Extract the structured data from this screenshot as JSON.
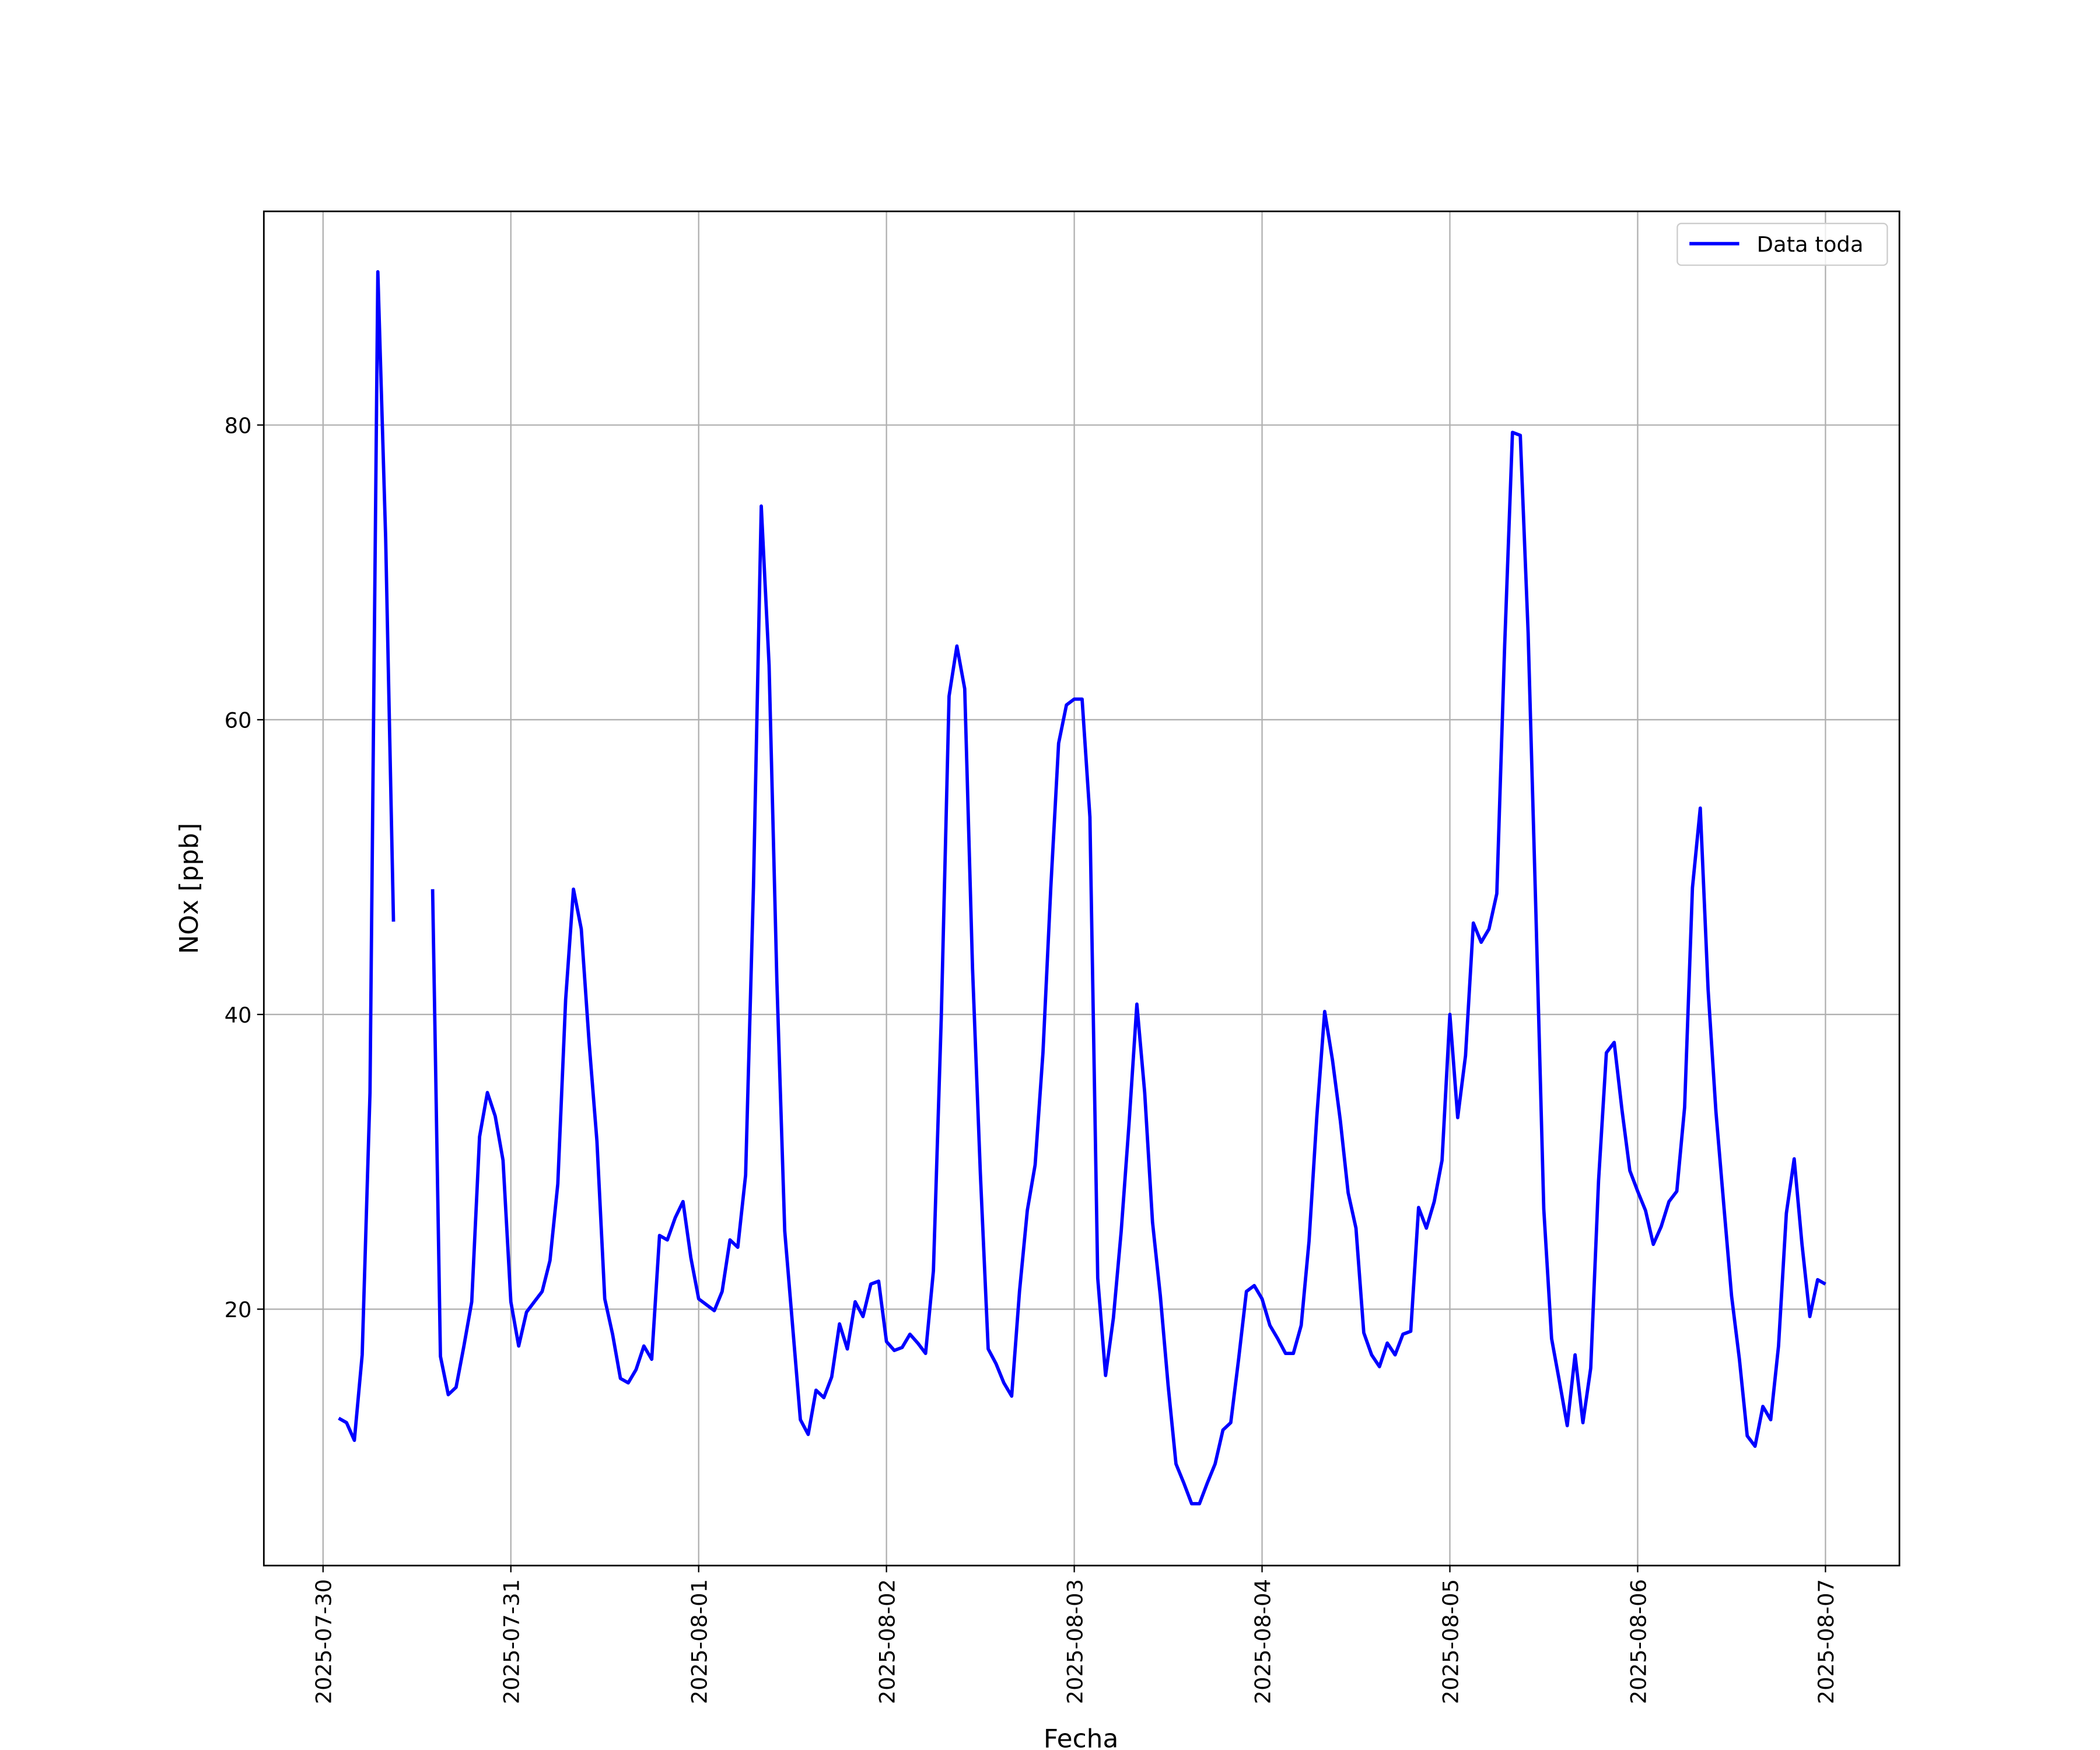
{
  "chart_data": {
    "type": "line",
    "xlabel": "Fecha",
    "ylabel": "NOx [ppb]",
    "x": [
      "2025-07-30 02:00",
      "2025-07-30 03:00",
      "2025-07-30 04:00",
      "2025-07-30 05:00",
      "2025-07-30 06:00",
      "2025-07-30 07:00",
      "2025-07-30 08:00",
      "2025-07-30 09:00",
      "2025-07-30 10:00",
      "2025-07-30 11:00",
      "2025-07-30 12:00",
      "2025-07-30 13:00",
      "2025-07-30 14:00",
      "2025-07-30 15:00",
      "2025-07-30 16:00",
      "2025-07-30 17:00",
      "2025-07-30 18:00",
      "2025-07-30 19:00",
      "2025-07-30 20:00",
      "2025-07-30 21:00",
      "2025-07-30 22:00",
      "2025-07-30 23:00",
      "2025-07-31 00:00",
      "2025-07-31 01:00",
      "2025-07-31 02:00",
      "2025-07-31 03:00",
      "2025-07-31 04:00",
      "2025-07-31 05:00",
      "2025-07-31 06:00",
      "2025-07-31 07:00",
      "2025-07-31 08:00",
      "2025-07-31 09:00",
      "2025-07-31 10:00",
      "2025-07-31 11:00",
      "2025-07-31 12:00",
      "2025-07-31 13:00",
      "2025-07-31 14:00",
      "2025-07-31 15:00",
      "2025-07-31 16:00",
      "2025-07-31 17:00",
      "2025-07-31 18:00",
      "2025-07-31 19:00",
      "2025-07-31 20:00",
      "2025-07-31 21:00",
      "2025-07-31 22:00",
      "2025-07-31 23:00",
      "2025-08-01 00:00",
      "2025-08-01 01:00",
      "2025-08-01 02:00",
      "2025-08-01 03:00",
      "2025-08-01 04:00",
      "2025-08-01 05:00",
      "2025-08-01 06:00",
      "2025-08-01 07:00",
      "2025-08-01 08:00",
      "2025-08-01 09:00",
      "2025-08-01 10:00",
      "2025-08-01 11:00",
      "2025-08-01 12:00",
      "2025-08-01 13:00",
      "2025-08-01 14:00",
      "2025-08-01 15:00",
      "2025-08-01 16:00",
      "2025-08-01 17:00",
      "2025-08-01 18:00",
      "2025-08-01 19:00",
      "2025-08-01 20:00",
      "2025-08-01 21:00",
      "2025-08-01 22:00",
      "2025-08-01 23:00",
      "2025-08-02 00:00",
      "2025-08-02 01:00",
      "2025-08-02 02:00",
      "2025-08-02 03:00",
      "2025-08-02 04:00",
      "2025-08-02 05:00",
      "2025-08-02 06:00",
      "2025-08-02 07:00",
      "2025-08-02 08:00",
      "2025-08-02 09:00",
      "2025-08-02 10:00",
      "2025-08-02 11:00",
      "2025-08-02 12:00",
      "2025-08-02 13:00",
      "2025-08-02 14:00",
      "2025-08-02 15:00",
      "2025-08-02 16:00",
      "2025-08-02 17:00",
      "2025-08-02 18:00",
      "2025-08-02 19:00",
      "2025-08-02 20:00",
      "2025-08-02 21:00",
      "2025-08-02 22:00",
      "2025-08-02 23:00",
      "2025-08-03 00:00",
      "2025-08-03 01:00",
      "2025-08-03 02:00",
      "2025-08-03 03:00",
      "2025-08-03 04:00",
      "2025-08-03 05:00",
      "2025-08-03 06:00",
      "2025-08-03 07:00",
      "2025-08-03 08:00",
      "2025-08-03 09:00",
      "2025-08-03 10:00",
      "2025-08-03 11:00",
      "2025-08-03 12:00",
      "2025-08-03 13:00",
      "2025-08-03 14:00",
      "2025-08-03 15:00",
      "2025-08-03 16:00",
      "2025-08-03 17:00",
      "2025-08-03 18:00",
      "2025-08-03 19:00",
      "2025-08-03 20:00",
      "2025-08-03 21:00",
      "2025-08-03 22:00",
      "2025-08-03 23:00",
      "2025-08-04 00:00",
      "2025-08-04 01:00",
      "2025-08-04 02:00",
      "2025-08-04 03:00",
      "2025-08-04 04:00",
      "2025-08-04 05:00",
      "2025-08-04 06:00",
      "2025-08-04 07:00",
      "2025-08-04 08:00",
      "2025-08-04 09:00",
      "2025-08-04 10:00",
      "2025-08-04 11:00",
      "2025-08-04 12:00",
      "2025-08-04 13:00",
      "2025-08-04 14:00",
      "2025-08-04 15:00",
      "2025-08-04 16:00",
      "2025-08-04 17:00",
      "2025-08-04 18:00",
      "2025-08-04 19:00",
      "2025-08-04 20:00",
      "2025-08-04 21:00",
      "2025-08-04 22:00",
      "2025-08-04 23:00",
      "2025-08-05 00:00",
      "2025-08-05 01:00",
      "2025-08-05 02:00",
      "2025-08-05 03:00",
      "2025-08-05 04:00",
      "2025-08-05 05:00",
      "2025-08-05 06:00",
      "2025-08-05 07:00",
      "2025-08-05 08:00",
      "2025-08-05 09:00",
      "2025-08-05 10:00",
      "2025-08-05 11:00",
      "2025-08-05 12:00",
      "2025-08-05 13:00",
      "2025-08-05 14:00",
      "2025-08-05 15:00",
      "2025-08-05 16:00",
      "2025-08-05 17:00",
      "2025-08-05 18:00",
      "2025-08-05 19:00",
      "2025-08-05 20:00",
      "2025-08-05 21:00",
      "2025-08-05 22:00",
      "2025-08-05 23:00",
      "2025-08-06 00:00",
      "2025-08-06 01:00",
      "2025-08-06 02:00",
      "2025-08-06 03:00",
      "2025-08-06 04:00",
      "2025-08-06 05:00",
      "2025-08-06 06:00",
      "2025-08-06 07:00",
      "2025-08-06 08:00",
      "2025-08-06 09:00",
      "2025-08-06 10:00",
      "2025-08-06 11:00",
      "2025-08-06 12:00",
      "2025-08-06 13:00",
      "2025-08-06 14:00",
      "2025-08-06 15:00",
      "2025-08-06 16:00",
      "2025-08-06 17:00",
      "2025-08-06 18:00",
      "2025-08-06 19:00",
      "2025-08-06 20:00",
      "2025-08-06 21:00",
      "2025-08-06 22:00",
      "2025-08-06 23:00",
      "2025-08-07 00:00"
    ],
    "series": [
      {
        "name": "Data toda",
        "color": "#0000ff",
        "values": [
          12.6,
          12.3,
          11.1,
          16.9,
          34.7,
          90.4,
          72.3,
          46.3,
          null,
          null,
          null,
          null,
          48.5,
          16.8,
          14.2,
          14.7,
          17.5,
          20.5,
          31.7,
          34.7,
          33.1,
          30.1,
          20.5,
          17.5,
          19.8,
          20.5,
          21.2,
          23.3,
          28.5,
          41.0,
          48.5,
          45.8,
          38.1,
          31.4,
          20.7,
          18.3,
          15.3,
          15.0,
          15.9,
          17.5,
          16.6,
          25.0,
          24.7,
          26.2,
          27.3,
          23.5,
          20.7,
          20.3,
          19.9,
          21.2,
          24.7,
          24.2,
          29.1,
          48.6,
          74.5,
          63.7,
          42.2,
          25.3,
          18.9,
          12.5,
          11.5,
          14.5,
          14.0,
          15.4,
          19.0,
          17.3,
          20.5,
          19.5,
          21.7,
          21.9,
          17.8,
          17.2,
          17.4,
          18.3,
          17.7,
          17.0,
          22.6,
          39.7,
          61.6,
          65.0,
          62.1,
          43.1,
          29.2,
          17.3,
          16.3,
          15.0,
          14.1,
          21.2,
          26.7,
          29.8,
          37.4,
          48.6,
          58.4,
          61.0,
          61.4,
          61.4,
          53.4,
          22.1,
          15.5,
          19.4,
          25.3,
          32.6,
          40.7,
          34.7,
          25.9,
          20.9,
          14.8,
          9.5,
          8.2,
          6.8,
          6.8,
          8.2,
          9.5,
          11.8,
          12.3,
          16.6,
          21.2,
          21.6,
          20.7,
          18.9,
          18.0,
          17.0,
          17.0,
          18.9,
          24.6,
          33.1,
          40.2,
          36.9,
          32.8,
          27.9,
          25.5,
          18.4,
          16.9,
          16.1,
          17.7,
          16.9,
          18.3,
          18.5,
          26.9,
          25.5,
          27.3,
          30.1,
          40.0,
          33.0,
          37.2,
          46.2,
          44.9,
          45.8,
          48.2,
          65.0,
          79.5,
          79.3,
          65.9,
          46.8,
          26.8,
          18.0,
          15.1,
          12.1,
          16.9,
          12.3,
          16.0,
          28.7,
          37.4,
          38.1,
          33.5,
          29.4,
          28.0,
          26.7,
          24.4,
          25.6,
          27.3,
          28.0,
          33.7,
          48.6,
          54.0,
          41.7,
          33.4,
          27.1,
          20.9,
          16.6,
          11.4,
          10.7,
          13.4,
          12.5,
          17.5,
          26.5,
          30.2,
          24.4,
          19.5,
          22.0,
          21.7
        ]
      }
    ],
    "xlim": [
      "2025-07-29 16:26",
      "2025-08-07 09:27"
    ],
    "xticks": [
      "2025-07-30",
      "2025-07-31",
      "2025-08-01",
      "2025-08-02",
      "2025-08-03",
      "2025-08-04",
      "2025-08-05",
      "2025-08-06",
      "2025-08-07"
    ],
    "ylim": [
      2.6,
      94.5
    ],
    "yticks": [
      20,
      40,
      60,
      80
    ],
    "grid": true,
    "legend": "upper right"
  }
}
